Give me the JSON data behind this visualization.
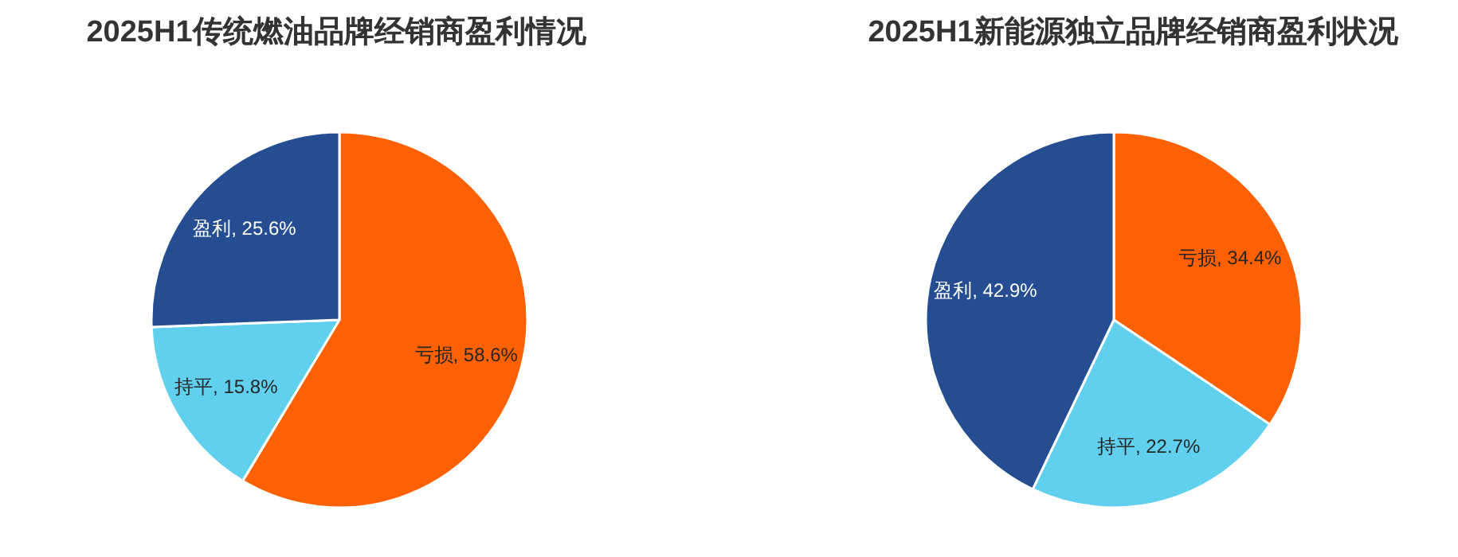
{
  "chart_data": [
    {
      "type": "pie",
      "title": "2025H1传统燃油品牌经销商盈利情况",
      "categories": [
        "亏损",
        "持平",
        "盈利"
      ],
      "values": [
        58.6,
        15.8,
        25.6
      ],
      "colors": [
        "#ff6000",
        "#61d0ee",
        "#254d91"
      ],
      "value_labels": [
        "58.6%",
        "15.8%",
        "25.6%"
      ]
    },
    {
      "type": "pie",
      "title": "2025H1新能源独立品牌经销商盈利状况",
      "categories": [
        "亏损",
        "持平",
        "盈利"
      ],
      "values": [
        34.4,
        22.7,
        42.9
      ],
      "colors": [
        "#ff6000",
        "#61d0ee",
        "#254d91"
      ],
      "value_labels": [
        "34.4%",
        "22.7%",
        "42.9%"
      ]
    }
  ]
}
